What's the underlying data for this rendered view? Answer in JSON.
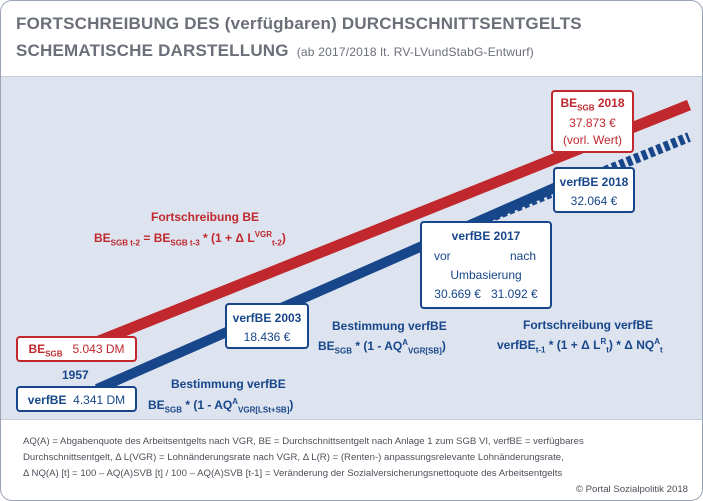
{
  "header": {
    "title_line1": "FORTSCHREIBUNG DES (verfügbaren) DURCHSCHNITTSENTGELTS",
    "title_line2": "SCHEMATISCHE DARSTELLUNG",
    "subtitle": "(ab 2017/2018 lt. RV-LVundStabG-Entwurf)"
  },
  "boxes": {
    "be_2018": {
      "label": "BE",
      "sub": "SGB",
      "year": "2018",
      "value": "37.873 €",
      "note": "(vorl. Wert)"
    },
    "verfbe_2018": {
      "label": "verfBE 2018",
      "value": "32.064 €"
    },
    "verfbe_2017": {
      "label": "verfBE 2017",
      "before": "vor",
      "after": "nach",
      "caption": "Umbasierung",
      "value_before": "30.669 €",
      "value_after": "31.092 €"
    },
    "verfbe_2003": {
      "label": "verfBE 2003",
      "value": "18.436 €"
    },
    "be_1957": {
      "label": "BE",
      "sub": "SGB",
      "value": "5.043 DM"
    },
    "verfbe_1957": {
      "label": "verfBE",
      "value": "4.341 DM"
    }
  },
  "labels": {
    "year_1957": "1957",
    "fortschreibung_be_title": "Fortschreibung BE",
    "fortschreibung_be_formula": {
      "p1": "BE",
      "s1": "SGB t-2",
      "p2": " = BE",
      "s2": "SGB t-3",
      "p3": " * (1 + Δ L",
      "sup3": "VGR",
      "s3": "t-2",
      "p4": ")"
    },
    "bestimmung_lst_title": "Bestimmung verfBE",
    "bestimmung_lst_formula": {
      "p1": "BE",
      "s1": "SGB",
      "p2": " * (1 - AQ",
      "sup2": "A",
      "s2": "VGR[LSt+SB]",
      "p3": ")"
    },
    "bestimmung_sb_title": "Bestimmung verfBE",
    "bestimmung_sb_formula": {
      "p1": "BE",
      "s1": "SGB",
      "p2": " * (1 - AQ",
      "sup2": "A",
      "s2": "VGR[SB]",
      "p3": ")"
    },
    "fortschreibung_verfbe_title": "Fortschreibung verfBE",
    "fortschreibung_verfbe_formula": {
      "p1": "verfBE",
      "s1": "t-1",
      "p2": " * (1 + Δ L",
      "sup2": "R",
      "s2": "t",
      "p3": ")  * Δ NQ",
      "sup3": "A",
      "s3": "t"
    }
  },
  "footer": {
    "line1": "AQ(A) = Abgabenquote des Arbeitsentgelts nach VGR, BE = Durchschnittsentgelt nach Anlage 1 zum SGB VI, verfBE = verfügbares",
    "line2": "Durchschnittsentgelt, Δ L(VGR) = Lohnänderungsrate nach VGR, Δ L(R) = (Renten-) anpassungsrelevante Lohnänderungsrate,",
    "line3": "Δ NQ(A) [t] = 100 – AQ(A)SVB [t] / 100 – AQ(A)SVB [t-1] = Veränderung der Sozialversicherungsnettoquote des Arbeitsentgelts",
    "copyright": "© Portal Sozialpolitik 2018"
  },
  "colors": {
    "red": "#c0282d",
    "blue": "#17468a",
    "background": "#dde3ef",
    "title_gray": "#6b6f79"
  }
}
